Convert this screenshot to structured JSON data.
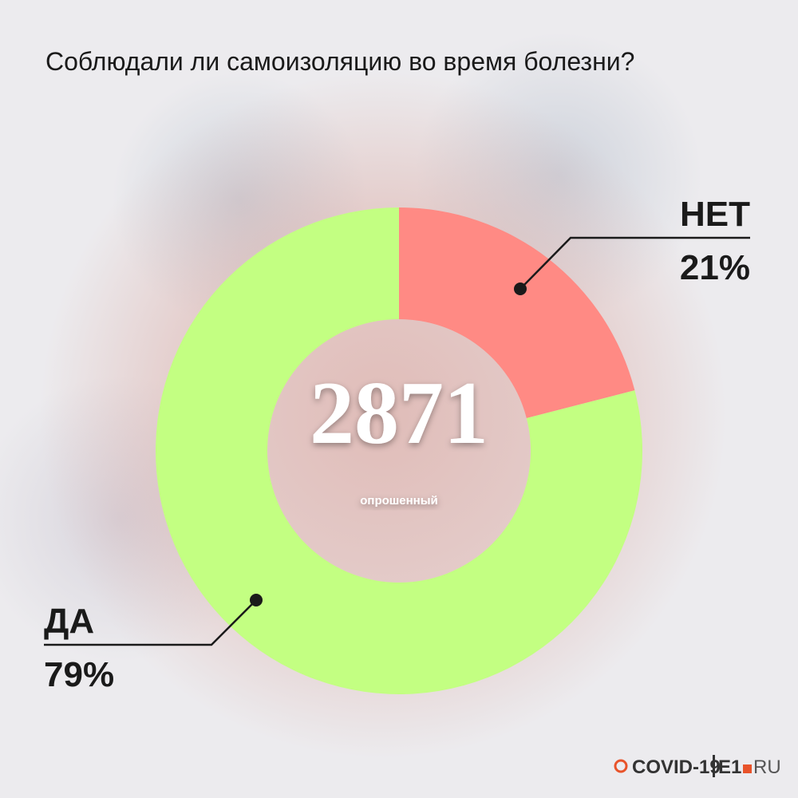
{
  "chart_data": {
    "type": "pie",
    "title": "Соблюдали ли самоизоляцию во время болезни?",
    "categories": [
      "НЕТ",
      "ДА"
    ],
    "values": [
      21,
      79
    ],
    "value_labels": [
      "21%",
      "79%"
    ],
    "colors": [
      "#ff8a84",
      "#c3ff82"
    ],
    "donut": true,
    "total": 2871,
    "total_label": "опрошенный",
    "brand": [
      "COVID-19",
      "E1",
      "RU"
    ]
  }
}
